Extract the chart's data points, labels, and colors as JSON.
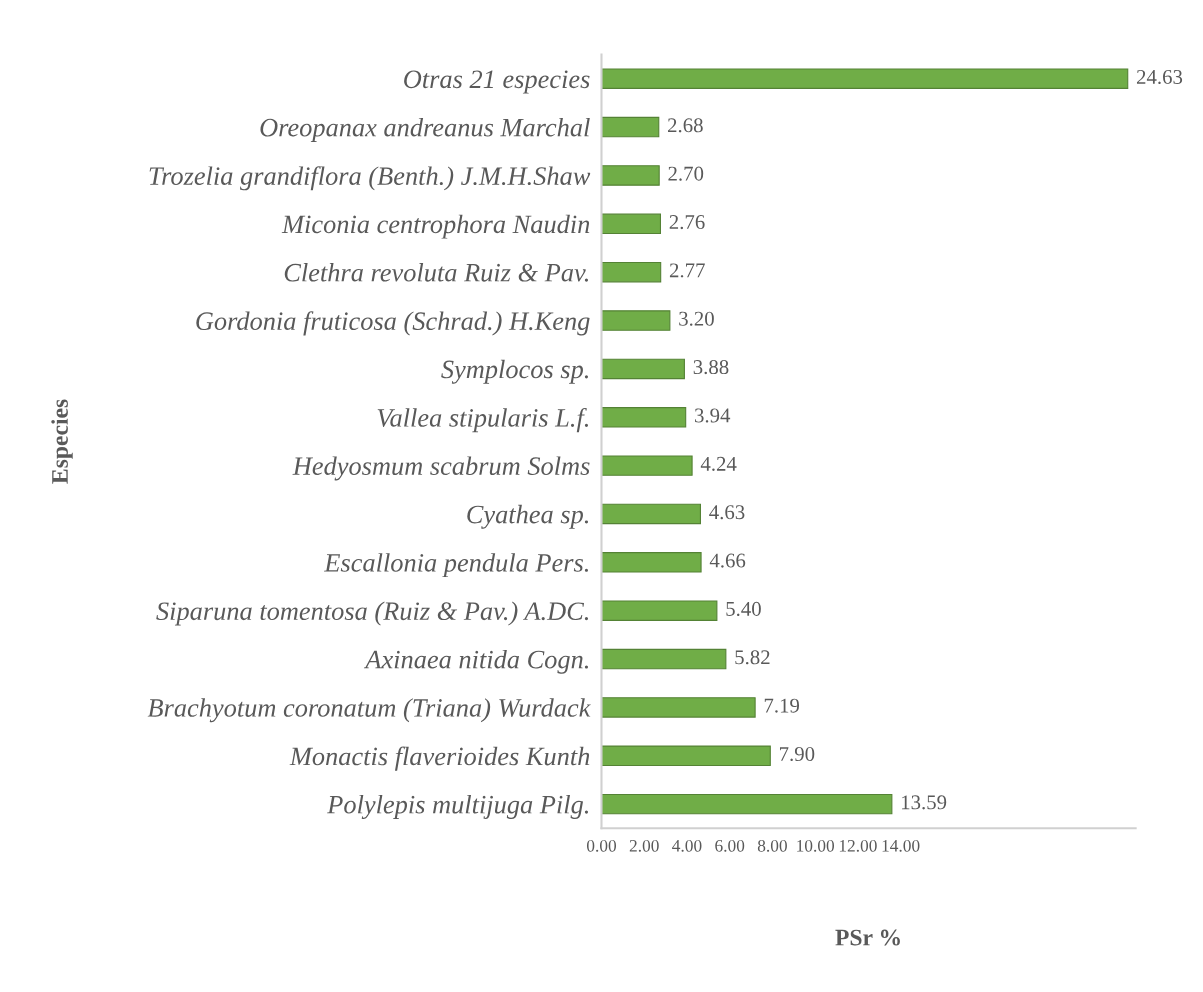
{
  "chart_data": {
    "type": "bar",
    "orientation": "horizontal",
    "xlabel": "PSr %",
    "ylabel": "Especies",
    "categories": [
      "Otras 21 especies",
      "Oreopanax andreanus Marchal",
      "Trozelia grandiflora (Benth.) J.M.H.Shaw",
      "Miconia centrophora Naudin",
      "Clethra revoluta Ruiz & Pav.",
      "Gordonia fruticosa (Schrad.) H.Keng",
      "Symplocos sp.",
      "Vallea stipularis L.f.",
      "Hedyosmum scabrum Solms",
      "Cyathea sp.",
      "Escallonia pendula Pers.",
      "Siparuna tomentosa (Ruiz & Pav.) A.DC.",
      "Axinaea nitida Cogn.",
      "Brachyotum coronatum (Triana) Wurdack",
      "Monactis flaverioides Kunth",
      "Polylepis multijuga Pilg."
    ],
    "values": [
      24.63,
      2.68,
      2.7,
      2.76,
      2.77,
      3.2,
      3.88,
      3.94,
      4.24,
      4.63,
      4.66,
      5.4,
      5.82,
      7.19,
      7.9,
      13.59
    ],
    "value_labels": [
      "24.63",
      "2.68",
      "2.70",
      "2.76",
      "2.77",
      "3.20",
      "3.88",
      "3.94",
      "4.24",
      "4.63",
      "4.66",
      "5.40",
      "5.82",
      "7.19",
      "7.90",
      "13.59"
    ],
    "color": "#70ad47",
    "xlim": [
      0,
      25
    ],
    "xticks": [
      {
        "value": 0,
        "label": "0.00"
      },
      {
        "value": 2,
        "label": "2.00"
      },
      {
        "value": 4,
        "label": "4.00"
      },
      {
        "value": 6,
        "label": "6.00"
      },
      {
        "value": 8,
        "label": "8.00"
      },
      {
        "value": 10,
        "label": "10.00"
      },
      {
        "value": 12,
        "label": "12.00"
      },
      {
        "value": 14,
        "label": "14.00"
      }
    ]
  }
}
